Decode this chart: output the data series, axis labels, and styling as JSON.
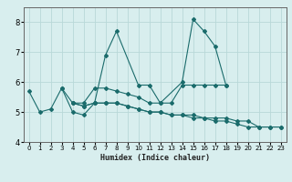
{
  "xlabel": "Humidex (Indice chaleur)",
  "xlim": [
    -0.5,
    23.5
  ],
  "ylim": [
    4,
    8.5
  ],
  "yticks": [
    4,
    5,
    6,
    7,
    8
  ],
  "xticks": [
    0,
    1,
    2,
    3,
    4,
    5,
    6,
    7,
    8,
    9,
    10,
    11,
    12,
    13,
    14,
    15,
    16,
    17,
    18,
    19,
    20,
    21,
    22,
    23
  ],
  "bg_color": "#d8eeee",
  "line_color": "#1a6b6b",
  "grid_color": "#b8d8d8",
  "curves": [
    {
      "x": [
        0,
        1,
        2,
        3,
        4,
        5,
        6,
        7,
        8,
        10,
        11,
        12,
        14,
        15,
        16,
        17,
        18
      ],
      "y": [
        5.7,
        5.0,
        5.1,
        5.8,
        5.0,
        4.9,
        5.3,
        6.9,
        7.7,
        5.9,
        5.9,
        5.3,
        6.0,
        8.1,
        7.7,
        7.2,
        5.9
      ]
    },
    {
      "x": [
        3,
        4,
        5,
        6,
        7,
        8,
        9,
        10,
        11,
        12,
        13,
        14,
        15,
        16,
        17,
        18
      ],
      "y": [
        5.8,
        5.3,
        5.3,
        5.8,
        5.8,
        5.7,
        5.6,
        5.5,
        5.3,
        5.3,
        5.3,
        5.9,
        5.9,
        5.9,
        5.9,
        5.9
      ]
    },
    {
      "x": [
        4,
        5,
        6,
        7,
        8,
        9,
        10,
        11,
        12,
        13,
        14,
        15,
        16,
        17,
        18,
        19,
        20,
        21,
        22,
        23
      ],
      "y": [
        5.3,
        5.2,
        5.3,
        5.3,
        5.3,
        5.2,
        5.1,
        5.0,
        5.0,
        4.9,
        4.9,
        4.9,
        4.8,
        4.8,
        4.8,
        4.7,
        4.7,
        4.5,
        4.5,
        4.5
      ]
    },
    {
      "x": [
        4,
        5,
        6,
        7,
        8,
        9,
        10,
        11,
        12,
        13,
        14,
        15,
        16,
        17,
        18,
        19,
        20,
        21,
        22,
        23
      ],
      "y": [
        5.3,
        5.2,
        5.3,
        5.3,
        5.3,
        5.2,
        5.1,
        5.0,
        5.0,
        4.9,
        4.9,
        4.8,
        4.8,
        4.7,
        4.7,
        4.6,
        4.5,
        4.5,
        4.5,
        4.5
      ]
    }
  ]
}
